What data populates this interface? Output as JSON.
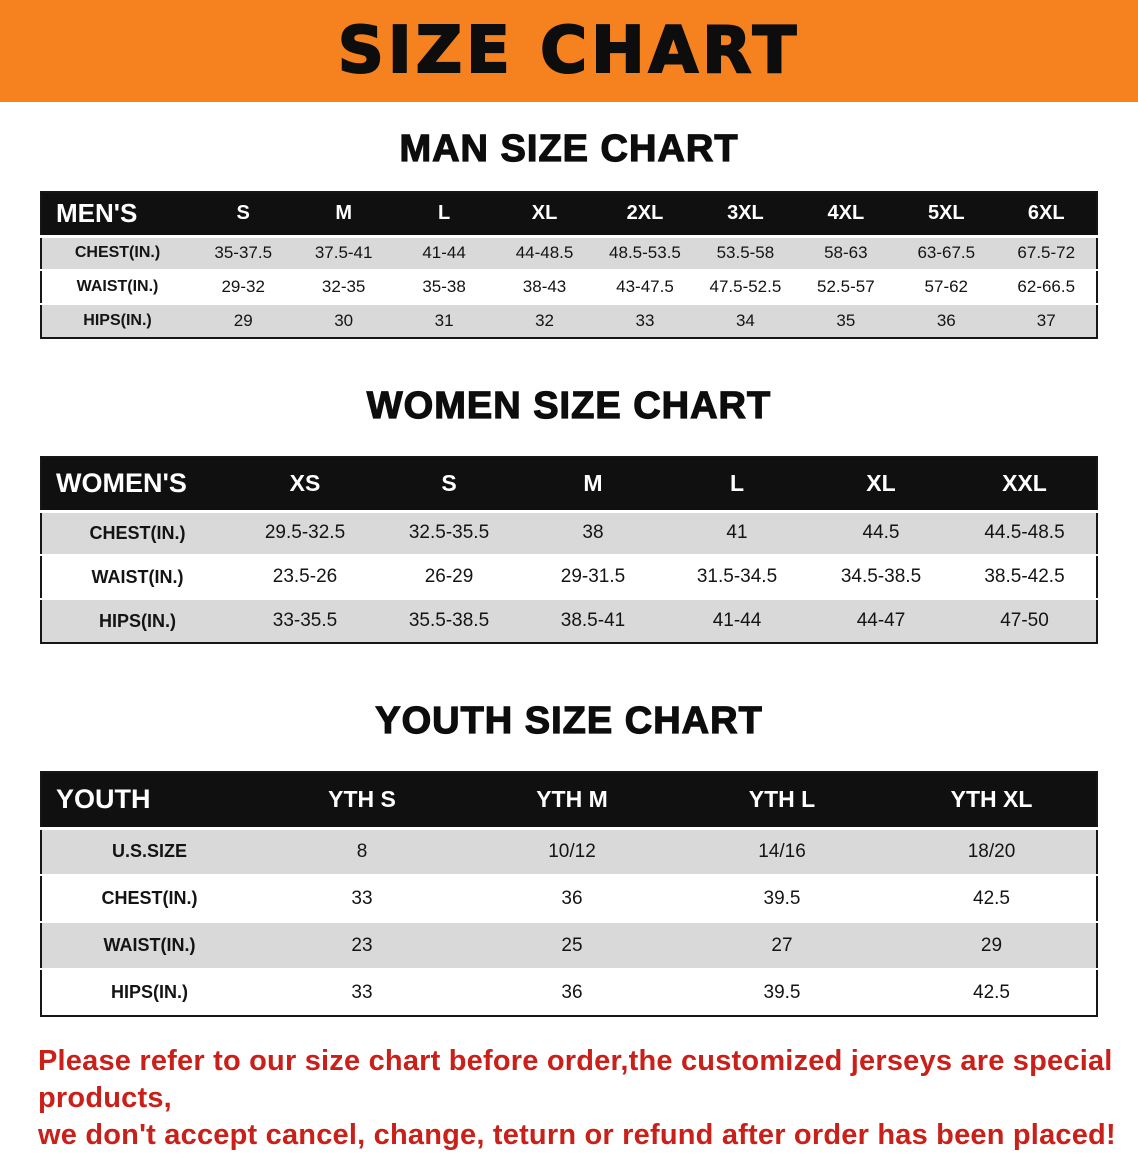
{
  "banner": {
    "title": "SIZE CHART"
  },
  "colors": {
    "banner_bg": "#f5821f",
    "table_header_bg": "#101010",
    "row_alt_bg": "#d9d9d9",
    "disclaimer_color": "#c9201a"
  },
  "men": {
    "heading": "MAN SIZE CHART",
    "header": {
      "label": "MEN'S",
      "sizes": [
        "S",
        "M",
        "L",
        "XL",
        "2XL",
        "3XL",
        "4XL",
        "5XL",
        "6XL"
      ]
    },
    "rows": [
      {
        "label": "CHEST(IN.)",
        "values": [
          "35-37.5",
          "37.5-41",
          "41-44",
          "44-48.5",
          "48.5-53.5",
          "53.5-58",
          "58-63",
          "63-67.5",
          "67.5-72"
        ]
      },
      {
        "label": "WAIST(IN.)",
        "values": [
          "29-32",
          "32-35",
          "35-38",
          "38-43",
          "43-47.5",
          "47.5-52.5",
          "52.5-57",
          "57-62",
          "62-66.5"
        ]
      },
      {
        "label": "HIPS(IN.)",
        "values": [
          "29",
          "30",
          "31",
          "32",
          "33",
          "34",
          "35",
          "36",
          "37"
        ]
      }
    ]
  },
  "women": {
    "heading": "WOMEN SIZE CHART",
    "header": {
      "label": "WOMEN'S",
      "sizes": [
        "XS",
        "S",
        "M",
        "L",
        "XL",
        "XXL"
      ]
    },
    "rows": [
      {
        "label": "CHEST(IN.)",
        "values": [
          "29.5-32.5",
          "32.5-35.5",
          "38",
          "41",
          "44.5",
          "44.5-48.5"
        ]
      },
      {
        "label": "WAIST(IN.)",
        "values": [
          "23.5-26",
          "26-29",
          "29-31.5",
          "31.5-34.5",
          "34.5-38.5",
          "38.5-42.5"
        ]
      },
      {
        "label": "HIPS(IN.)",
        "values": [
          "33-35.5",
          "35.5-38.5",
          "38.5-41",
          "41-44",
          "44-47",
          "47-50"
        ]
      }
    ]
  },
  "youth": {
    "heading": "YOUTH SIZE CHART",
    "header": {
      "label": "YOUTH",
      "sizes": [
        "YTH S",
        "YTH M",
        "YTH L",
        "YTH XL"
      ]
    },
    "rows": [
      {
        "label": "U.S.SIZE",
        "values": [
          "8",
          "10/12",
          "14/16",
          "18/20"
        ]
      },
      {
        "label": "CHEST(IN.)",
        "values": [
          "33",
          "36",
          "39.5",
          "42.5"
        ]
      },
      {
        "label": "WAIST(IN.)",
        "values": [
          "23",
          "25",
          "27",
          "29"
        ]
      },
      {
        "label": "HIPS(IN.)",
        "values": [
          "33",
          "36",
          "39.5",
          "42.5"
        ]
      }
    ]
  },
  "disclaimer": {
    "line1": "Please refer to our size chart before order,the customized jerseys are special products,",
    "line2": "we don't accept cancel, change, teturn or refund after order has been placed!"
  }
}
